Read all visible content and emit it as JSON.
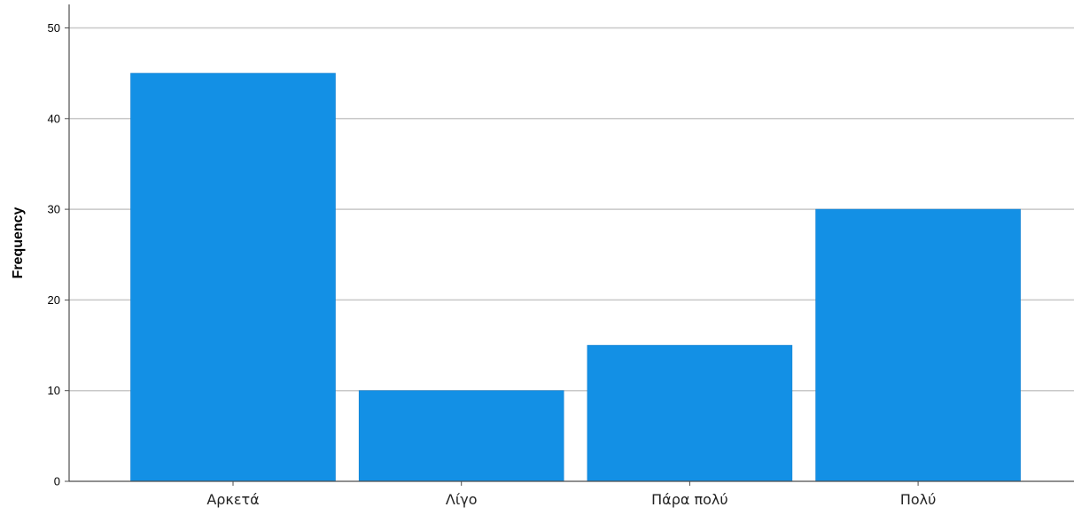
{
  "chart_data": {
    "type": "bar",
    "categories": [
      "Αρκετά",
      "Λίγο",
      "Πάρα πολύ",
      "Πολύ"
    ],
    "values": [
      45,
      10,
      15,
      30
    ],
    "title": "",
    "xlabel": "",
    "ylabel": "Frequency",
    "ylim": [
      0,
      52
    ],
    "yticks": [
      0,
      10,
      20,
      30,
      40,
      50
    ],
    "grid": true,
    "bar_color": "#1390e5"
  }
}
